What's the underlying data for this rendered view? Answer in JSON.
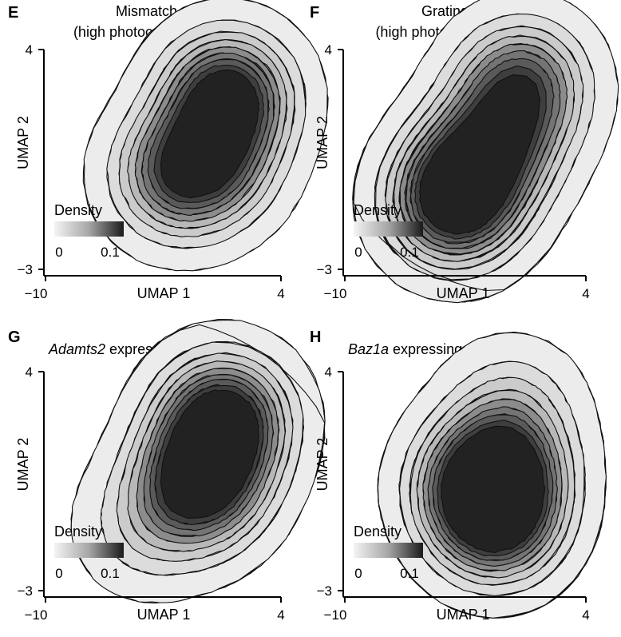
{
  "chart_data": [
    {
      "type": "contour",
      "panel_label": "E",
      "title_lines": [
        "Mismatch",
        "(high photoconversion)"
      ],
      "title_italic": "",
      "xlabel": "UMAP 1",
      "ylabel": "UMAP 2",
      "xlim": [
        -10,
        4
      ],
      "ylim": [
        -3,
        4
      ],
      "xticks": [
        "−10",
        "4"
      ],
      "yticks": [
        "4",
        "−3"
      ],
      "legend": {
        "title": "Density",
        "min_label": "0",
        "max_label": "0.1",
        "range": [
          0,
          0.1
        ],
        "placement": "bottom-left"
      },
      "density_peaks": [
        {
          "x": 0.8,
          "y": 2.5,
          "peak": 0.09
        },
        {
          "x": -0.2,
          "y": 0.6,
          "peak": 0.06
        },
        {
          "x": -2.2,
          "y": 0.1,
          "peak": 0.05
        }
      ]
    },
    {
      "type": "contour",
      "panel_label": "F",
      "title_lines": [
        "Gratings",
        "(high photoconversion)"
      ],
      "title_italic": "",
      "xlabel": "UMAP 1",
      "ylabel": "UMAP 2",
      "xlim": [
        -10,
        4
      ],
      "ylim": [
        -3,
        4
      ],
      "xticks": [
        "−10",
        "4"
      ],
      "yticks": [
        "4",
        "−3"
      ],
      "legend": {
        "title": "Density",
        "min_label": "0",
        "max_label": "0.1",
        "range": [
          0,
          0.1
        ],
        "placement": "bottom-left"
      },
      "density_peaks": [
        {
          "x": -3.6,
          "y": -0.7,
          "peak": 0.1
        },
        {
          "x": -2.3,
          "y": 0.4,
          "peak": 0.06
        },
        {
          "x": -0.8,
          "y": 1.4,
          "peak": 0.05
        },
        {
          "x": 0.3,
          "y": 2.9,
          "peak": 0.07
        }
      ]
    },
    {
      "type": "contour",
      "panel_label": "G",
      "title_lines": [
        "Adamts2 expressing cells"
      ],
      "title_italic": "Adamts2",
      "xlabel": "UMAP 1",
      "ylabel": "UMAP 2",
      "xlim": [
        -10,
        4
      ],
      "ylim": [
        -3,
        4
      ],
      "xticks": [
        "−10",
        "4"
      ],
      "yticks": [
        "4",
        "−3"
      ],
      "legend": {
        "title": "Density",
        "min_label": "0",
        "max_label": "0.1",
        "range": [
          0,
          0.1
        ],
        "placement": "bottom-left"
      },
      "density_peaks": [
        {
          "x": 0.6,
          "y": 2.5,
          "peak": 0.1
        },
        {
          "x": -0.5,
          "y": 0.9,
          "peak": 0.08
        },
        {
          "x": -1.2,
          "y": 0.1,
          "peak": 0.04
        },
        {
          "x": -4.0,
          "y": -0.8,
          "peak": 0.02
        }
      ]
    },
    {
      "type": "contour",
      "panel_label": "H",
      "title_lines": [
        "Baz1a expressing cells"
      ],
      "title_italic": "Baz1a",
      "xlabel": "UMAP 1",
      "ylabel": "UMAP 2",
      "xlim": [
        -10,
        4
      ],
      "ylim": [
        -3,
        4
      ],
      "xticks": [
        "−10",
        "4"
      ],
      "yticks": [
        "4",
        "−3"
      ],
      "legend": {
        "title": "Density",
        "min_label": "0",
        "max_label": "0.1",
        "range": [
          0,
          0.1
        ],
        "placement": "bottom-left"
      },
      "density_peaks": [
        {
          "x": -1.2,
          "y": -0.5,
          "peak": 0.08
        },
        {
          "x": -0.8,
          "y": 1.0,
          "peak": 0.06
        },
        {
          "x": -2.5,
          "y": 0.5,
          "peak": 0.04
        },
        {
          "x": -0.3,
          "y": 2.8,
          "peak": 0.02
        }
      ]
    }
  ]
}
